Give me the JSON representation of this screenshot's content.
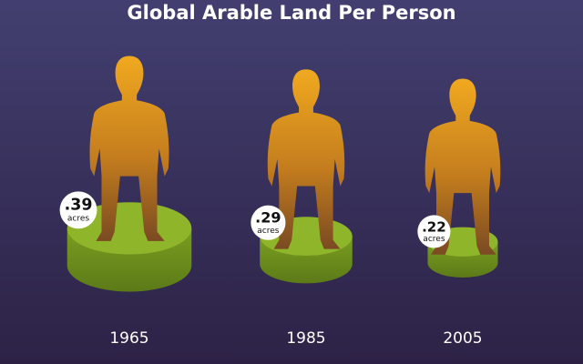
{
  "chart_data": {
    "type": "pictogram",
    "title": "Global Arable Land Per Person",
    "categories": [
      "1965",
      "1985",
      "2005"
    ],
    "values": [
      0.39,
      0.29,
      0.22
    ],
    "value_labels": [
      ".39",
      ".29",
      ".22"
    ],
    "unit": "acres",
    "color": "#8fb52a"
  }
}
